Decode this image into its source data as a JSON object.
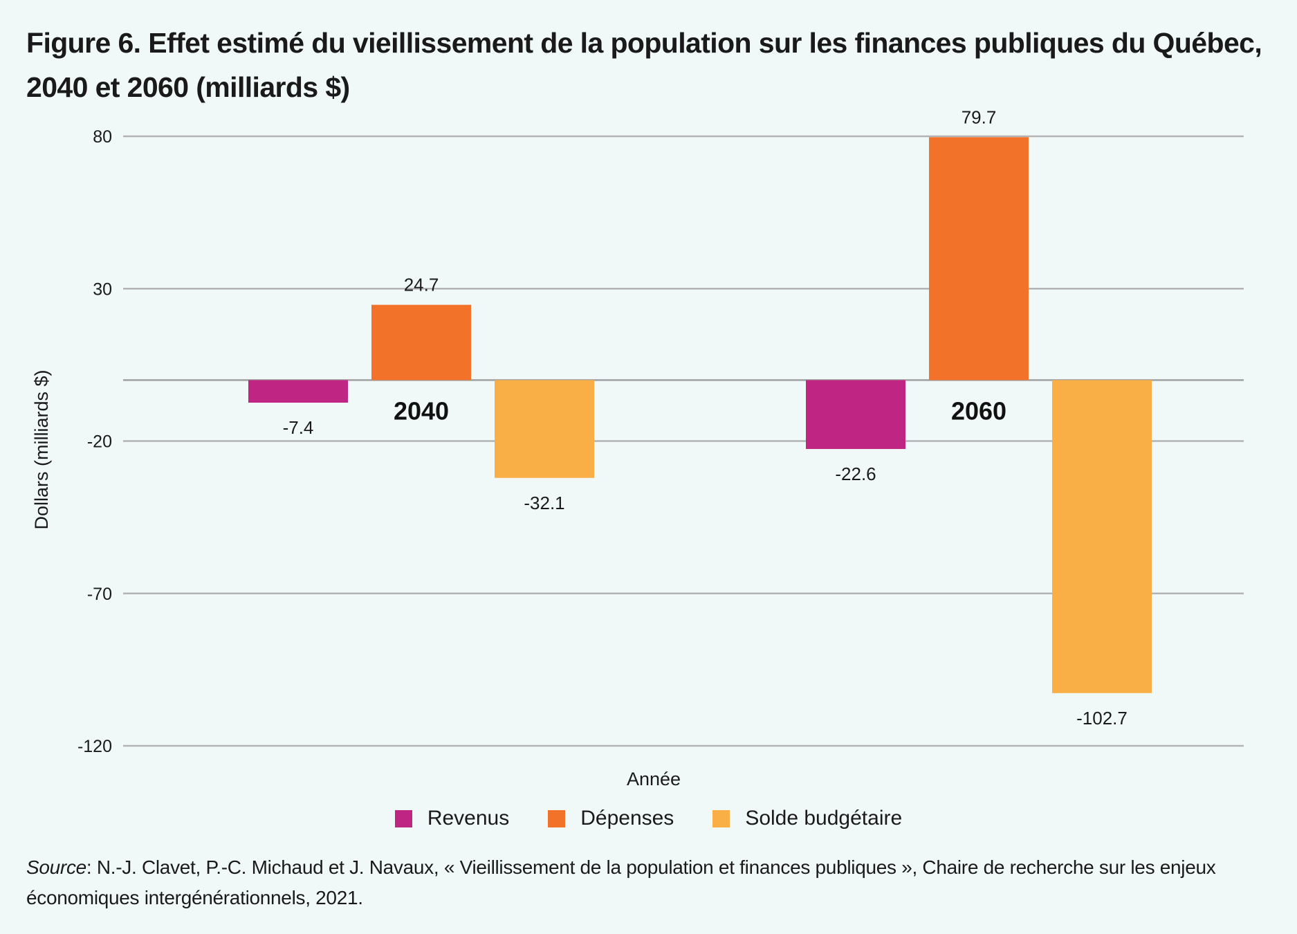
{
  "title": "Figure 6. Effet estimé du vieillissement de la population sur les finances publiques du Québec, 2040 et 2060 (milliards $)",
  "source": {
    "label": "Source",
    "text": ": N.-J. Clavet, P.-C. Michaud et J. Navaux, « Vieillissement de la population et finances publiques », Chaire de recherche sur les enjeux économiques intergénérationnels, 2021."
  },
  "chart_data": {
    "type": "bar",
    "title": "Figure 6. Effet estimé du vieillissement de la population sur les finances publiques du Québec, 2040 et 2060 (milliards $)",
    "xlabel": "Année",
    "ylabel": "Dollars (milliards $)",
    "categories": [
      "2040",
      "2060"
    ],
    "series": [
      {
        "name": "Revenus",
        "color": "#bf2583",
        "values": [
          -7.4,
          -22.6
        ],
        "labels": [
          "-7.4",
          "-22.6"
        ]
      },
      {
        "name": "Dépenses",
        "color": "#f2722a",
        "values": [
          24.7,
          79.7
        ],
        "labels": [
          "24.7",
          "79.7"
        ]
      },
      {
        "name": "Solde budgétaire",
        "color": "#f9af46",
        "values": [
          -32.1,
          -102.7
        ],
        "labels": [
          "-32.1",
          "-102.7"
        ]
      }
    ],
    "yticks": [
      80,
      30,
      -20,
      -70,
      -120
    ],
    "ylim": [
      -120,
      80
    ],
    "grid": true,
    "legend_position": "bottom"
  }
}
